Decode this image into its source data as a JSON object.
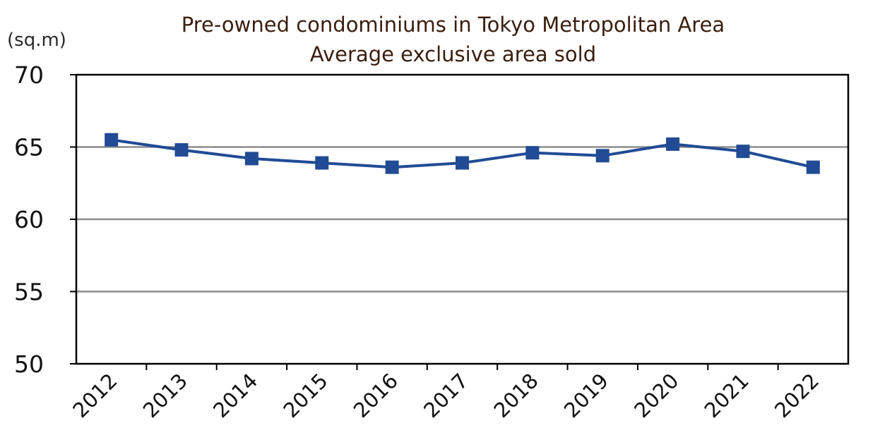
{
  "chart_data": {
    "type": "line",
    "title": "Pre-owned condominiums in Tokyo Metropolitan Area",
    "subtitle": "Average exclusive area sold",
    "ylabel": "(sq.m)",
    "xlabel": "",
    "categories": [
      "2012",
      "2013",
      "2014",
      "2015",
      "2016",
      "2017",
      "2018",
      "2019",
      "2020",
      "2021",
      "2022"
    ],
    "series": [
      {
        "values": [
          65.5,
          64.8,
          64.2,
          63.9,
          63.6,
          63.9,
          64.6,
          64.4,
          65.2,
          64.7,
          63.6
        ]
      }
    ],
    "ylim": [
      50,
      70
    ],
    "yticks": [
      "50",
      "55",
      "60",
      "65",
      "70"
    ],
    "grid": true,
    "legend": "none",
    "colors": {
      "line": "#214b94",
      "grid": "#8c8c8c",
      "axis": "#000000"
    }
  }
}
